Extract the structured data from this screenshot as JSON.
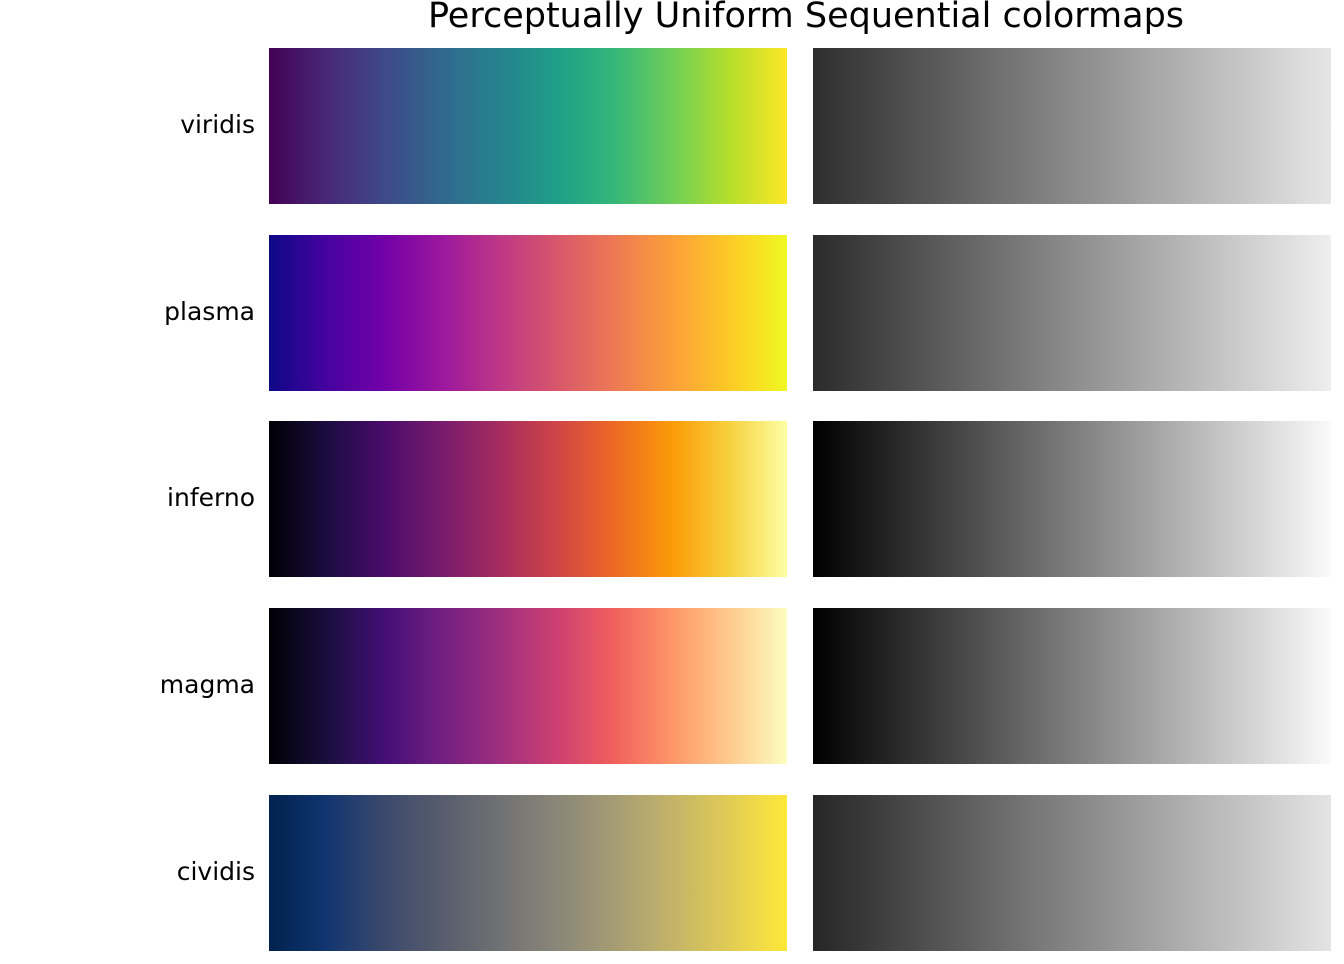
{
  "title": "Perceptually Uniform Sequential colormaps",
  "colormaps": [
    {
      "name": "viridis",
      "colors": [
        "#440154",
        "#482878",
        "#3e4989",
        "#31688e",
        "#26828e",
        "#1f9e89",
        "#35b779",
        "#6ece58",
        "#b5de2b",
        "#fde725"
      ],
      "gray": [
        "#2e2e2e",
        "#e6e6e6"
      ]
    },
    {
      "name": "plasma",
      "colors": [
        "#0d0887",
        "#46039f",
        "#7201a8",
        "#9c179e",
        "#bd3786",
        "#d8576b",
        "#ed7953",
        "#fb9f3a",
        "#fdca26",
        "#f0f921"
      ],
      "gray": [
        "#2b2b2b",
        "#eeeeee"
      ]
    },
    {
      "name": "inferno",
      "colors": [
        "#000004",
        "#1b0c41",
        "#4a0c6b",
        "#781c6d",
        "#a52c60",
        "#cf4446",
        "#ed6925",
        "#fb9b06",
        "#f7d13d",
        "#fcffa4"
      ],
      "gray": [
        "#000000",
        "#fafafa"
      ]
    },
    {
      "name": "magma",
      "colors": [
        "#000004",
        "#180f3d",
        "#440f76",
        "#721f81",
        "#9e2f7f",
        "#cd4071",
        "#f1605d",
        "#fd9668",
        "#feca8d",
        "#fcfdbf"
      ],
      "gray": [
        "#000000",
        "#fafafa"
      ]
    },
    {
      "name": "cividis",
      "colors": [
        "#00224e",
        "#123570",
        "#3b496c",
        "#575d6d",
        "#707173",
        "#8a8678",
        "#a59c74",
        "#c3b369",
        "#e1cc55",
        "#fee838"
      ],
      "gray": [
        "#262626",
        "#e4e4e4"
      ]
    }
  ]
}
